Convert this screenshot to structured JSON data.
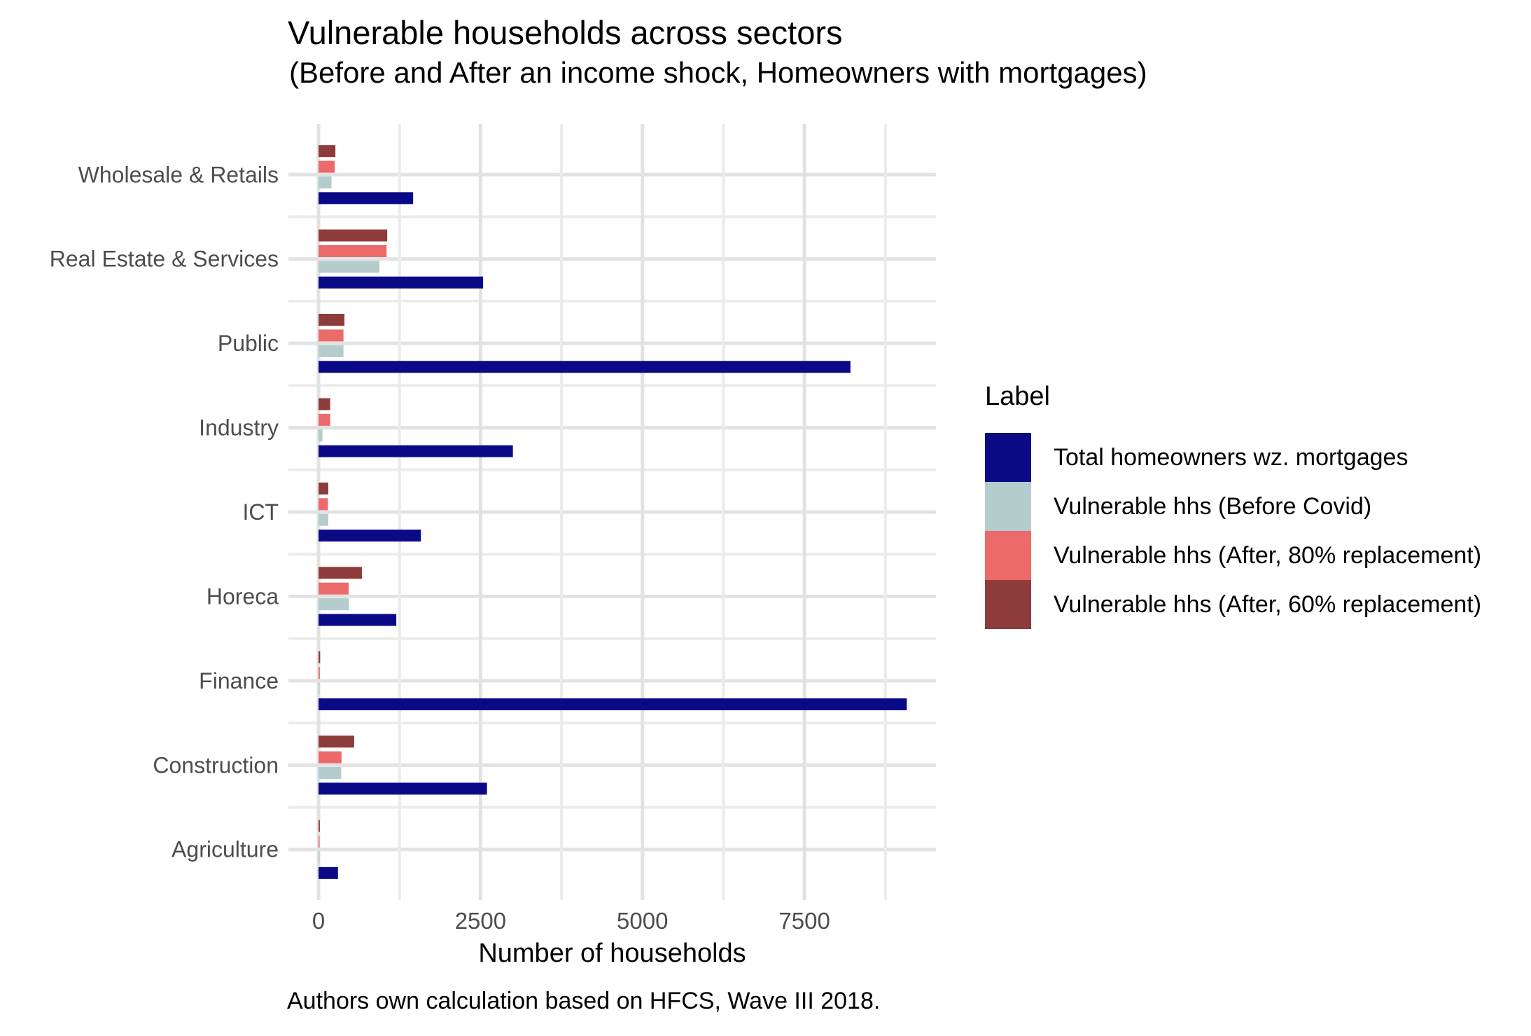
{
  "chart_data": {
    "type": "bar",
    "orientation": "horizontal",
    "title": "Vulnerable households across sectors",
    "subtitle": "(Before and After an income shock, Homeowners with mortgages)",
    "caption": "Authors own calculation based on HFCS, Wave III 2018.",
    "xlabel": "Number of households",
    "ylabel": "",
    "legend_title": "Label",
    "legend_position": "right",
    "grid": true,
    "categories": [
      "Wholesale & Retails",
      "Real Estate & Services",
      "Public",
      "Industry",
      "ICT",
      "Horeca",
      "Finance",
      "Construction",
      "Agriculture"
    ],
    "series": [
      {
        "name": "Total homeowners wz. mortgages",
        "color": "#0A0A87",
        "values": [
          1460,
          2540,
          8210,
          3000,
          1580,
          1200,
          9080,
          2600,
          300
        ]
      },
      {
        "name": "Vulnerable hhs (Before Covid)",
        "color": "#B5CCCC",
        "values": [
          200,
          940,
          385,
          60,
          150,
          470,
          15,
          350,
          10
        ]
      },
      {
        "name": "Vulnerable hhs (After, 80% replacement)",
        "color": "#EC6A6A",
        "values": [
          250,
          1050,
          385,
          180,
          145,
          465,
          20,
          355,
          15
        ]
      },
      {
        "name": "Vulnerable hhs (After, 60% replacement)",
        "color": "#8E3B3B",
        "values": [
          260,
          1060,
          400,
          180,
          150,
          670,
          25,
          550,
          20
        ]
      }
    ],
    "bar_order_top_to_bottom": [
      3,
      2,
      1,
      0
    ],
    "x_ticks": [
      0,
      2500,
      5000,
      7500
    ],
    "x_tick_labels": [
      "0",
      "2500",
      "5000",
      "7500"
    ],
    "x_minor_ticks": [
      1250,
      3750,
      6250,
      8750
    ],
    "xlim": [
      -465,
      9530
    ]
  },
  "colors": {
    "background": "#FFFFFF",
    "grid_major": "#E2E2E2",
    "grid_minor": "#EBEBEB",
    "axis_text": "#4D4D4D",
    "text": "#000000"
  }
}
